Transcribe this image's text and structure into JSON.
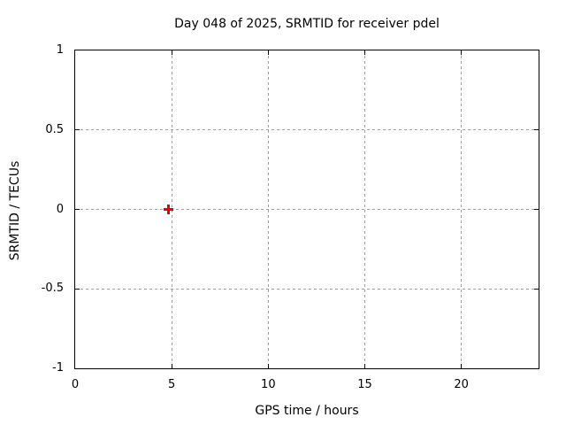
{
  "background_color": "#ffffff",
  "text_color": "#000000",
  "chart_data": {
    "type": "scatter",
    "title": "Day 048 of 2025, SRMTID for receiver pdel",
    "xlabel": "GPS time / hours",
    "ylabel": "SRMTID / TECUs",
    "xlim": [
      0,
      24
    ],
    "ylim": [
      -1,
      1
    ],
    "x_ticks": [
      0,
      5,
      10,
      15,
      20
    ],
    "x_tick_labels": [
      "0",
      "5",
      "10",
      "15",
      "20"
    ],
    "y_ticks": [
      1,
      0.5,
      0,
      -0.5,
      -1
    ],
    "y_tick_labels": [
      "1",
      "0.5",
      "0",
      "-0.5",
      "-1"
    ],
    "grid": true,
    "grid_style": "dashed",
    "grid_color": "#a0a0a0",
    "border_color": "#000000",
    "legend": "none",
    "series": [
      {
        "name": "SRMTID",
        "marker": "plus",
        "color": "#ee0000",
        "points": [
          {
            "x": 4.85,
            "y": 0.0
          }
        ]
      }
    ]
  }
}
